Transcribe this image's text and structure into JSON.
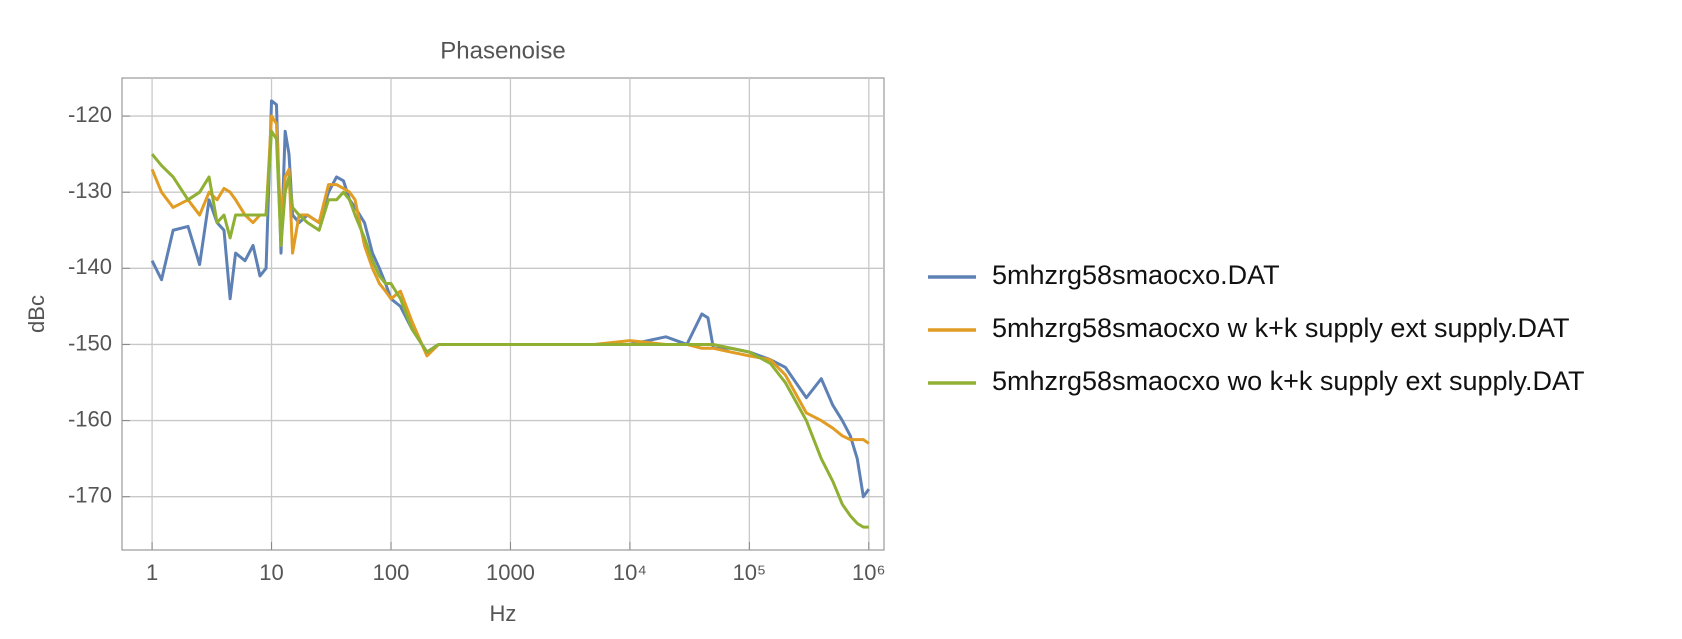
{
  "chart_data": {
    "type": "line",
    "title": "Phasenoise",
    "x_label": "Hz",
    "y_label": "dBc",
    "xscale": "log",
    "grid": true,
    "legend": "right",
    "xlim": [
      0.56,
      1340000
    ],
    "ylim": [
      -177,
      -115
    ],
    "xticks": [
      1,
      10,
      100,
      1000,
      {
        "value": 10000,
        "label": "10⁴"
      },
      {
        "value": 100000,
        "label": "10⁵"
      },
      {
        "value": 1000000,
        "label": "10⁶"
      }
    ],
    "yticks": [
      -170,
      -160,
      -150,
      -140,
      -130,
      -120
    ],
    "x": [
      1,
      1.2,
      1.5,
      2,
      2.5,
      3,
      3.5,
      4,
      4.5,
      5,
      6,
      7,
      8,
      9,
      10,
      11,
      12,
      13,
      14,
      15,
      17,
      20,
      25,
      30,
      35,
      40,
      45,
      50,
      60,
      70,
      80,
      90,
      100,
      120,
      150,
      200,
      250,
      300,
      500,
      1000,
      2000,
      5000,
      10000,
      20000,
      30000,
      40000,
      45000,
      50000,
      70000,
      100000,
      150000,
      200000,
      300000,
      400000,
      500000,
      600000,
      700000,
      800000,
      900000,
      1000000
    ],
    "series": [
      {
        "name": "5mhzrg58smaocxo.DAT",
        "color": "#5e81b5",
        "values": [
          -139,
          -141.5,
          -135,
          -134.5,
          -139.5,
          -131,
          -134,
          -135,
          -144,
          -138,
          -139,
          -137,
          -141,
          -140,
          -118,
          -118.5,
          -138,
          -122,
          -125,
          -133,
          -134,
          -133,
          -134,
          -130,
          -128,
          -128.5,
          -131,
          -132,
          -134,
          -138,
          -140,
          -142,
          -144,
          -145,
          -148,
          -151,
          -150,
          -150,
          -150,
          -150,
          -150,
          -150,
          -150,
          -149,
          -150,
          -146,
          -146.5,
          -150.5,
          -150.5,
          -151,
          -152,
          -153,
          -157,
          -154.5,
          -158,
          -160,
          -162,
          -165,
          -170,
          -169
        ]
      },
      {
        "name": "5mhzrg58smaocxo w k+k supply ext supply.DAT",
        "color": "#e19c24",
        "values": [
          -127,
          -130,
          -132,
          -131,
          -133,
          -130,
          -131,
          -129.5,
          -130,
          -131,
          -133,
          -134,
          -133,
          -133,
          -120,
          -121,
          -135,
          -128,
          -127,
          -138,
          -133,
          -133,
          -134,
          -129,
          -129,
          -129.5,
          -130,
          -131,
          -137,
          -140,
          -142,
          -143,
          -144,
          -143,
          -147,
          -151.5,
          -150,
          -150,
          -150,
          -150,
          -150,
          -150,
          -149.5,
          -150,
          -150,
          -150.5,
          -150.5,
          -150.5,
          -151,
          -151.5,
          -152,
          -154,
          -159,
          -160,
          -161,
          -162,
          -162.5,
          -162.5,
          -162.5,
          -163
        ]
      },
      {
        "name": "5mhzrg58smaocxo wo k+k supply ext supply.DAT",
        "color": "#8fb032",
        "values": [
          -125,
          -126.5,
          -128,
          -131,
          -130,
          -128,
          -134,
          -133,
          -136,
          -133,
          -133,
          -133,
          -133,
          -133,
          -122,
          -123,
          -137,
          -130,
          -128,
          -132,
          -133,
          -134,
          -135,
          -131,
          -131,
          -130,
          -131,
          -133,
          -136,
          -139,
          -141,
          -142,
          -142,
          -144,
          -148,
          -151,
          -150,
          -150,
          -150,
          -150,
          -150,
          -150,
          -150,
          -150,
          -150,
          -150,
          -150,
          -150,
          -150.5,
          -151,
          -152.5,
          -155,
          -160,
          -165,
          -168,
          -171,
          -172.5,
          -173.5,
          -174,
          -174
        ]
      }
    ]
  }
}
